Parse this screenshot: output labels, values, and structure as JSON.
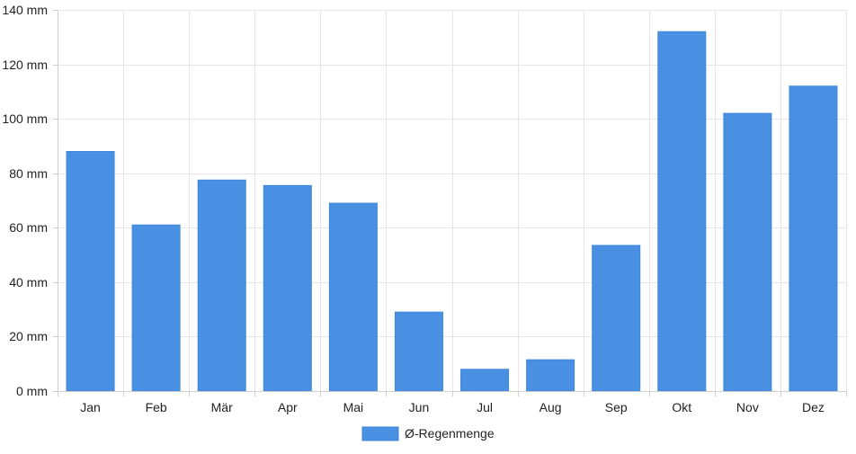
{
  "chart_data": {
    "type": "bar",
    "categories": [
      "Jan",
      "Feb",
      "Mär",
      "Apr",
      "Mai",
      "Jun",
      "Jul",
      "Aug",
      "Sep",
      "Okt",
      "Nov",
      "Dez"
    ],
    "series": [
      {
        "name": "Ø-Regenmenge",
        "values": [
          88,
          61,
          77.5,
          75.5,
          69,
          29,
          8,
          11.5,
          53.5,
          132,
          102,
          112
        ],
        "color": "#4a90e2"
      }
    ],
    "ylim": [
      0,
      140
    ],
    "yticks": [
      0,
      20,
      40,
      60,
      80,
      100,
      120,
      140
    ],
    "y_tick_labels": [
      "0 mm",
      "20 mm",
      "40 mm",
      "60 mm",
      "80 mm",
      "100 mm",
      "120 mm",
      "140 mm"
    ],
    "grid": true,
    "legend_position": "bottom"
  }
}
